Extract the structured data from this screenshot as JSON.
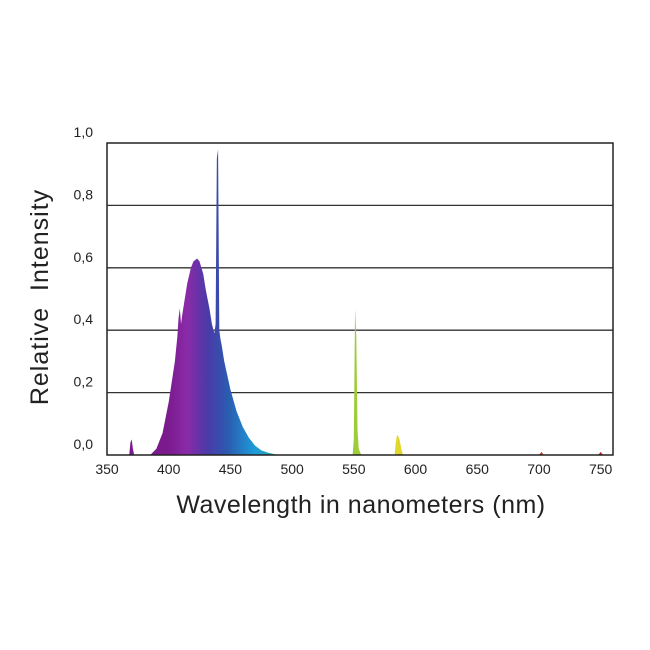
{
  "chart_data": {
    "type": "area",
    "title": "",
    "xlabel": "Wavelength in nanometers (nm)",
    "ylabel": "Relative  Intensity",
    "xlim": [
      350,
      760
    ],
    "ylim": [
      0,
      1.0
    ],
    "x_ticks": [
      350,
      400,
      450,
      500,
      550,
      600,
      650,
      700,
      750
    ],
    "x_tick_labels": [
      "350",
      "400",
      "450",
      "500",
      "550",
      "600",
      "650",
      "700",
      "750"
    ],
    "y_ticks": [
      0,
      0.2,
      0.4,
      0.6,
      0.8,
      1.0
    ],
    "y_tick_labels": [
      "0,0",
      "0,2",
      "0,4",
      "0,6",
      "0,8",
      "1,0"
    ],
    "grid": "horizontal",
    "legend": "none",
    "fill": "spectral gradient",
    "series": [
      {
        "x": [
          368,
          369,
          370,
          371,
          372,
          385,
          390,
          395,
          400,
          405,
          407,
          408,
          409,
          410,
          411,
          413,
          415,
          418,
          420,
          423,
          425,
          428,
          430,
          433,
          435,
          437,
          438,
          439,
          440,
          441,
          442,
          443,
          445,
          450,
          455,
          460,
          465,
          470,
          475,
          480,
          485,
          490,
          549,
          550,
          551,
          552,
          553,
          554,
          555,
          556,
          583,
          584,
          585,
          586,
          587,
          588,
          589,
          590,
          700,
          702,
          704,
          748,
          750,
          752
        ],
        "y": [
          0.0,
          0.04,
          0.05,
          0.02,
          0.0,
          0.0,
          0.02,
          0.07,
          0.17,
          0.3,
          0.38,
          0.44,
          0.47,
          0.42,
          0.45,
          0.5,
          0.55,
          0.6,
          0.62,
          0.63,
          0.62,
          0.58,
          0.53,
          0.47,
          0.42,
          0.39,
          0.42,
          0.95,
          0.98,
          0.4,
          0.37,
          0.35,
          0.3,
          0.21,
          0.14,
          0.09,
          0.055,
          0.03,
          0.015,
          0.008,
          0.003,
          0.0,
          0.0,
          0.05,
          0.47,
          0.38,
          0.08,
          0.02,
          0.01,
          0.0,
          0.0,
          0.04,
          0.065,
          0.06,
          0.05,
          0.03,
          0.01,
          0.0,
          0.0,
          0.01,
          0.0,
          0.0,
          0.01,
          0.0
        ]
      }
    ]
  }
}
